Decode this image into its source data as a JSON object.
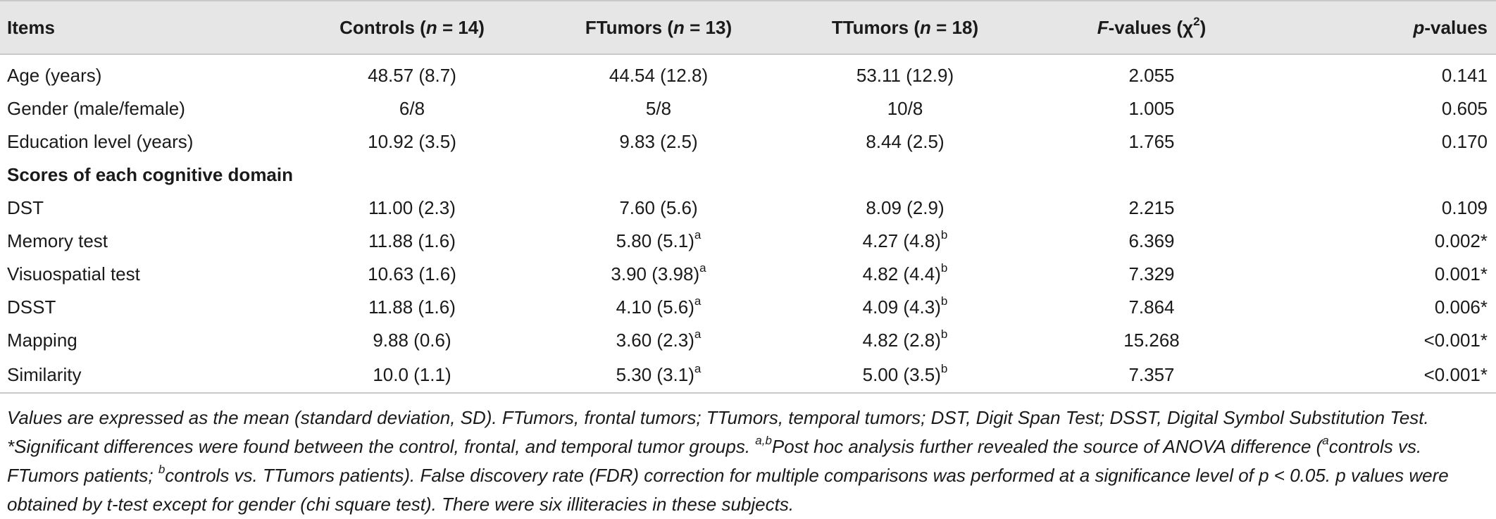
{
  "table": {
    "headers": {
      "items": "Items",
      "controls_pre": "Controls (",
      "controls_n": "n",
      "controls_post": " = 14)",
      "ftumors_pre": "FTumors (",
      "ftumors_n": "n",
      "ftumors_post": " = 13)",
      "ttumors_pre": "TTumors (",
      "ttumors_n": "n",
      "ttumors_post": " = 18)",
      "f_italic": "F",
      "f_post": "-values (χ",
      "f_sup": "2",
      "f_close": ")",
      "p_italic": "p",
      "p_post": "-values"
    },
    "rows": [
      {
        "item": "Age (years)",
        "controls": "48.57 (8.7)",
        "ftumors": "44.54 (12.8)",
        "ftumors_sup": "",
        "ttumors": "53.11 (12.9)",
        "ttumors_sup": "",
        "f": "2.055",
        "p": "0.141"
      },
      {
        "item": "Gender (male/female)",
        "controls": "6/8",
        "ftumors": "5/8",
        "ftumors_sup": "",
        "ttumors": "10/8",
        "ttumors_sup": "",
        "f": "1.005",
        "p": "0.605"
      },
      {
        "item": "Education level (years)",
        "controls": "10.92 (3.5)",
        "ftumors": "9.83 (2.5)",
        "ftumors_sup": "",
        "ttumors": "8.44 (2.5)",
        "ttumors_sup": "",
        "f": "1.765",
        "p": "0.170"
      },
      {
        "section": "Scores of each cognitive domain"
      },
      {
        "item": "DST",
        "controls": "11.00 (2.3)",
        "ftumors": "7.60 (5.6)",
        "ftumors_sup": "",
        "ttumors": "8.09 (2.9)",
        "ttumors_sup": "",
        "f": "2.215",
        "p": "0.109"
      },
      {
        "item": "Memory test",
        "controls": "11.88 (1.6)",
        "ftumors": "5.80 (5.1)",
        "ftumors_sup": "a",
        "ttumors": "4.27 (4.8)",
        "ttumors_sup": "b",
        "f": "6.369",
        "p": "0.002*"
      },
      {
        "item": "Visuospatial test",
        "controls": "10.63 (1.6)",
        "ftumors": "3.90 (3.98)",
        "ftumors_sup": "a",
        "ttumors": "4.82 (4.4)",
        "ttumors_sup": "b",
        "f": "7.329",
        "p": "0.001*"
      },
      {
        "item": "DSST",
        "controls": "11.88 (1.6)",
        "ftumors": "4.10 (5.6)",
        "ftumors_sup": "a",
        "ttumors": "4.09 (4.3)",
        "ttumors_sup": "b",
        "f": "7.864",
        "p": "0.006*"
      },
      {
        "item": "Mapping",
        "controls": "9.88 (0.6)",
        "ftumors": "3.60 (2.3)",
        "ftumors_sup": "a",
        "ttumors": "4.82 (2.8)",
        "ttumors_sup": "b",
        "f": "15.268",
        "p": "<0.001*"
      },
      {
        "item": "Similarity",
        "controls": "10.0 (1.1)",
        "ftumors": "5.30 (3.1)",
        "ftumors_sup": "a",
        "ttumors": "5.00 (3.5)",
        "ttumors_sup": "b",
        "f": "7.357",
        "p": "<0.001*"
      }
    ]
  },
  "footnote": {
    "part1": "Values are expressed as the mean (standard deviation, SD). FTumors, frontal tumors; TTumors, temporal tumors; DST, Digit Span Test; DSST, Digital Symbol Substitution Test. *Significant differences were found between the control, frontal, and temporal tumor groups. ",
    "sup_ab": "a,b",
    "part2": "Post hoc analysis further revealed the source of ANOVA difference (",
    "sup_a": "a",
    "part3": "controls vs. FTumors patients; ",
    "sup_b": "b",
    "part4": "controls vs. TTumors patients). False discovery rate (FDR) correction for multiple comparisons was performed at a significance level of p < 0.05. p values were obtained by t-test except for gender (chi square test). There were six illiteracies in these subjects."
  }
}
